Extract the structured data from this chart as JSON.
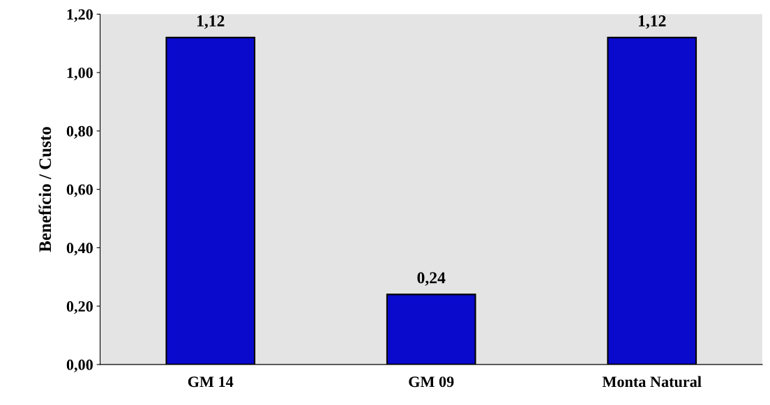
{
  "chart_data": {
    "type": "bar",
    "ylabel": "Benefício / Custo",
    "categories": [
      "GM 14",
      "GM 09",
      "Monta Natural"
    ],
    "values": [
      1.12,
      0.24,
      1.12
    ],
    "value_labels": [
      "1,12",
      "0,24",
      "1,12"
    ],
    "color": "#0a0acc",
    "ylim": [
      0,
      1.2
    ],
    "yticks": [
      {
        "value": 0,
        "label": "0,00"
      },
      {
        "value": 0.2,
        "label": "0,20"
      },
      {
        "value": 0.4,
        "label": "0,40"
      },
      {
        "value": 0.6,
        "label": "0,60"
      },
      {
        "value": 0.8,
        "label": "0,80"
      },
      {
        "value": 1.0,
        "label": "1,00"
      },
      {
        "value": 1.2,
        "label": "1,20"
      }
    ],
    "grid": false
  }
}
